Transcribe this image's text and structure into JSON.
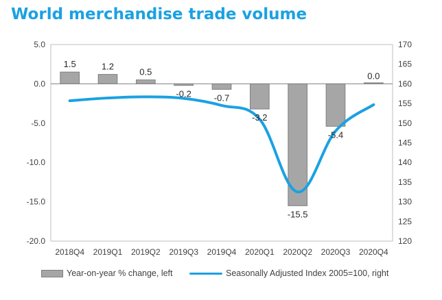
{
  "title": "World merchandise trade volume",
  "chart_data": {
    "type": "bar",
    "categories": [
      "2018Q4",
      "2019Q1",
      "2019Q2",
      "2019Q3",
      "2019Q4",
      "2020Q1",
      "2020Q2",
      "2020Q3",
      "2020Q4"
    ],
    "series": [
      {
        "name": "Year-on-year % change, left",
        "type": "bar",
        "axis": "left",
        "values": [
          1.5,
          1.2,
          0.5,
          -0.2,
          -0.7,
          -3.2,
          -15.5,
          -5.4,
          0.0
        ],
        "labels": [
          "1.5",
          "1.2",
          "0.5",
          "-0.2",
          "-0.7",
          "-3.2",
          "-15.5",
          "-5.4",
          "0.0"
        ],
        "color": "#A6A6A6"
      },
      {
        "name": "Seasonally Adjusted Index 2005=100, right",
        "type": "line",
        "axis": "right",
        "values": [
          155.7,
          156.4,
          156.7,
          156.3,
          154.5,
          151.0,
          132.5,
          148.0,
          154.7
        ],
        "color": "#1BA1E2"
      }
    ],
    "y_left": {
      "min": -20,
      "max": 5,
      "step": 5,
      "tick_labels": [
        "5.0",
        "0.0",
        "-5.0",
        "-10.0",
        "-15.0",
        "-20.0"
      ]
    },
    "y_right": {
      "min": 120,
      "max": 170,
      "step": 5,
      "tick_labels": [
        "170",
        "165",
        "160",
        "155",
        "150",
        "145",
        "140",
        "135",
        "130",
        "125",
        "120"
      ]
    },
    "grid": false,
    "legend": "bottom"
  }
}
